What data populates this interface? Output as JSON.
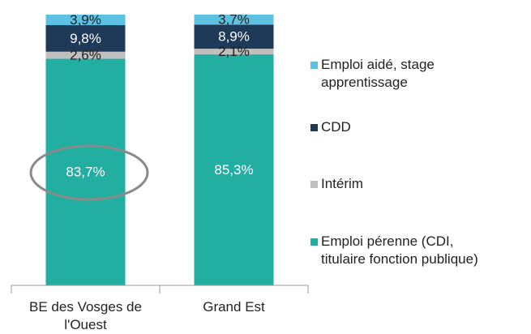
{
  "chart_data": {
    "type": "stacked_bar",
    "categories": [
      "BE des Vosges de l'Ouest",
      "Grand Est"
    ],
    "series": [
      {
        "name": "Emploi pérenne (CDI, titulaire fonction publique)",
        "color": "#22aea1",
        "values": [
          83.7,
          85.3
        ],
        "value_labels": [
          "83,7%",
          "85,3%"
        ]
      },
      {
        "name": "Intérim",
        "color": "#bfbfbf",
        "values": [
          2.6,
          2.1
        ],
        "value_labels": [
          "2,6%",
          "2,1%"
        ]
      },
      {
        "name": "CDD",
        "color": "#1f3a58",
        "values": [
          9.8,
          8.9
        ],
        "value_labels": [
          "9,8%",
          "8,9%"
        ]
      },
      {
        "name": "Emploi aidé, stage apprentissage",
        "color": "#5cc1e3",
        "values": [
          3.9,
          3.7
        ],
        "value_labels": [
          "3,9%",
          "3,7%"
        ]
      }
    ],
    "ylim": [
      0,
      100
    ]
  }
}
